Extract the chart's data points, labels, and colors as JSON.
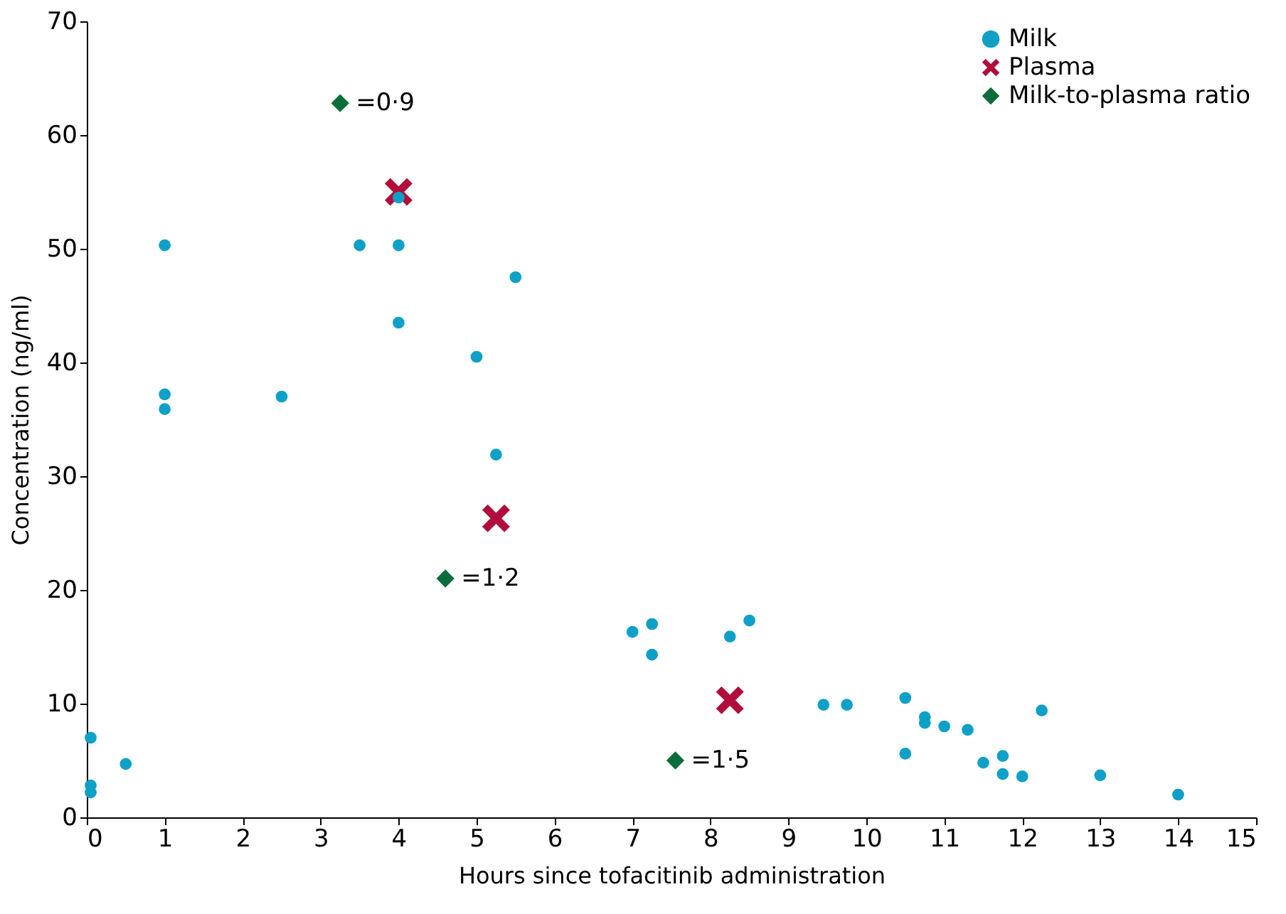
{
  "chart_data": {
    "type": "scatter",
    "xlabel": "Hours since tofacitinib administration",
    "ylabel": "Concentration (ng/ml)",
    "xlim": [
      0,
      15
    ],
    "xticks": [
      0,
      1,
      2,
      3,
      4,
      5,
      6,
      7,
      8,
      9,
      10,
      11,
      12,
      13,
      14,
      15
    ],
    "ylim": [
      0,
      70
    ],
    "yticks": [
      0,
      10,
      20,
      30,
      40,
      50,
      60,
      70
    ],
    "grid": false,
    "legend": "top right",
    "series": [
      {
        "name": "Milk",
        "color": "#0fa0c8",
        "marker": "circle",
        "x": [
          0.05,
          0.05,
          0.05,
          0.5,
          1,
          1,
          1,
          2.5,
          3.5,
          4,
          4,
          4,
          5,
          5.25,
          5.5,
          7,
          7.25,
          7.25,
          8.25,
          8.5,
          9.45,
          9.75,
          10.5,
          10.5,
          10.75,
          10.75,
          11,
          11.3,
          11.5,
          11.75,
          11.75,
          12,
          12.25,
          13,
          14
        ],
        "values": [
          7,
          2.8,
          2.2,
          4.7,
          50.3,
          37.2,
          35.9,
          37,
          50.3,
          54.5,
          50.3,
          43.5,
          40.5,
          31.9,
          47.5,
          16.3,
          17,
          14.3,
          15.9,
          17.3,
          9.9,
          9.9,
          10.5,
          5.6,
          8.8,
          8.3,
          8,
          7.7,
          4.8,
          5.4,
          3.8,
          3.6,
          9.4,
          3.7,
          2
        ]
      },
      {
        "name": "Plasma",
        "color": "#b00d3c",
        "marker": "cross",
        "x": [
          4,
          5.25,
          8.25
        ],
        "values": [
          55,
          26.3,
          10.3
        ]
      },
      {
        "name": "Milk-to-plasma ratio",
        "color": "#0b6e3a",
        "marker": "diamond",
        "x": [
          3.25,
          4.6,
          7.55
        ],
        "values": [
          62.8,
          21,
          5
        ]
      }
    ],
    "annotations": [
      {
        "text": "=0·9",
        "x": 3.25,
        "y": 62.8
      },
      {
        "text": "=1·2",
        "x": 4.6,
        "y": 21
      },
      {
        "text": "=1·5",
        "x": 7.55,
        "y": 5
      }
    ]
  }
}
